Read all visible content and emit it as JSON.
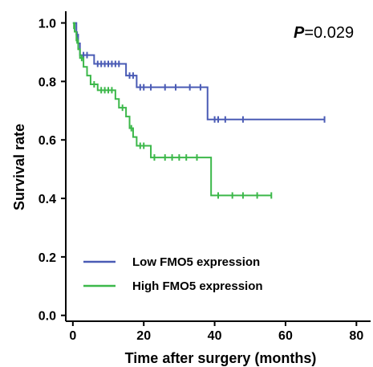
{
  "chart_data": {
    "type": "line",
    "title": "",
    "xlabel": "Time after surgery (months)",
    "ylabel": "Survival rate",
    "xlim": [
      -2,
      84
    ],
    "ylim": [
      -0.02,
      1.04
    ],
    "xticks": [
      0,
      20,
      40,
      60,
      80
    ],
    "yticks": [
      0.0,
      0.2,
      0.4,
      0.6,
      0.8,
      1.0
    ],
    "xtick_labels": [
      "0",
      "20",
      "40",
      "60",
      "80"
    ],
    "ytick_labels": [
      "0.0",
      "0.2",
      "0.4",
      "0.6",
      "0.8",
      "1.0"
    ],
    "grid": false,
    "legend_position": "bottom-left",
    "annotation": {
      "p_label": "P",
      "p_value": "=0.029"
    },
    "series": [
      {
        "name": "Low FMO5 expression",
        "color": "#4a5bb5",
        "steps": [
          [
            0,
            1.0
          ],
          [
            1,
            0.96
          ],
          [
            1.5,
            0.93
          ],
          [
            2,
            0.89
          ],
          [
            6,
            0.86
          ],
          [
            15,
            0.82
          ],
          [
            18,
            0.78
          ],
          [
            38,
            0.67
          ],
          [
            71,
            0.67
          ]
        ],
        "censored": [
          [
            0.5,
            0.99
          ],
          [
            1.2,
            0.96
          ],
          [
            3,
            0.89
          ],
          [
            4,
            0.89
          ],
          [
            7,
            0.86
          ],
          [
            8,
            0.86
          ],
          [
            9,
            0.86
          ],
          [
            10,
            0.86
          ],
          [
            11,
            0.86
          ],
          [
            12,
            0.86
          ],
          [
            13,
            0.86
          ],
          [
            16,
            0.82
          ],
          [
            17,
            0.82
          ],
          [
            19,
            0.78
          ],
          [
            20,
            0.78
          ],
          [
            22,
            0.78
          ],
          [
            26,
            0.78
          ],
          [
            29,
            0.78
          ],
          [
            33,
            0.78
          ],
          [
            36,
            0.78
          ],
          [
            40,
            0.67
          ],
          [
            41,
            0.67
          ],
          [
            43,
            0.67
          ],
          [
            48,
            0.67
          ],
          [
            71,
            0.67
          ]
        ]
      },
      {
        "name": "High FMO5 expression",
        "color": "#3cb84a",
        "steps": [
          [
            0,
            1.0
          ],
          [
            0.5,
            0.97
          ],
          [
            1,
            0.94
          ],
          [
            1.5,
            0.91
          ],
          [
            2,
            0.88
          ],
          [
            3,
            0.85
          ],
          [
            4,
            0.82
          ],
          [
            5,
            0.79
          ],
          [
            7,
            0.77
          ],
          [
            12,
            0.74
          ],
          [
            13,
            0.71
          ],
          [
            15,
            0.68
          ],
          [
            16,
            0.64
          ],
          [
            17,
            0.61
          ],
          [
            18,
            0.58
          ],
          [
            22,
            0.54
          ],
          [
            39,
            0.41
          ],
          [
            56,
            0.41
          ]
        ],
        "censored": [
          [
            0.3,
            0.99
          ],
          [
            1.2,
            0.94
          ],
          [
            2.5,
            0.88
          ],
          [
            6,
            0.79
          ],
          [
            8,
            0.77
          ],
          [
            9,
            0.77
          ],
          [
            10,
            0.77
          ],
          [
            11,
            0.77
          ],
          [
            14,
            0.71
          ],
          [
            16.5,
            0.64
          ],
          [
            19,
            0.58
          ],
          [
            20,
            0.58
          ],
          [
            23,
            0.54
          ],
          [
            26,
            0.54
          ],
          [
            28,
            0.54
          ],
          [
            30,
            0.54
          ],
          [
            32,
            0.54
          ],
          [
            35,
            0.54
          ],
          [
            41,
            0.41
          ],
          [
            45,
            0.41
          ],
          [
            48,
            0.41
          ],
          [
            52,
            0.41
          ],
          [
            56,
            0.41
          ]
        ]
      }
    ]
  }
}
